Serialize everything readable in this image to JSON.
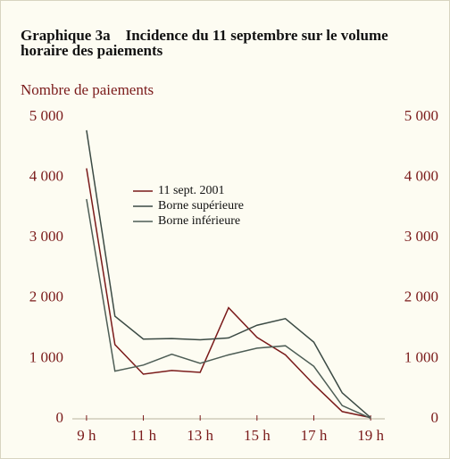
{
  "chart_data": {
    "type": "line",
    "title": "Graphique 3a    Incidence du 11 septembre sur le volume horaire des paiements",
    "ylabel": "Nombre de paiements",
    "x": [
      9,
      10,
      11,
      12,
      13,
      14,
      15,
      16,
      17,
      18,
      19
    ],
    "xlim": [
      8.5,
      19.5
    ],
    "xticks": [
      {
        "value": 9,
        "label": "9 h"
      },
      {
        "value": 11,
        "label": "11 h"
      },
      {
        "value": 13,
        "label": "13 h"
      },
      {
        "value": 15,
        "label": "15 h"
      },
      {
        "value": 17,
        "label": "17 h"
      },
      {
        "value": 19,
        "label": "19 h"
      }
    ],
    "ylim": [
      0,
      5000
    ],
    "yticks": [
      0,
      {
        "value": 1000,
        "label": "1 000"
      },
      {
        "value": 2000,
        "label": "2 000"
      },
      {
        "value": 3000,
        "label": "3 000"
      },
      {
        "value": 4000,
        "label": "4 000"
      },
      {
        "value": 5000,
        "label": "5 000"
      }
    ],
    "y2lim": [
      0,
      5000
    ],
    "y2ticks": [
      0,
      {
        "value": 1000,
        "label": "1 000"
      },
      {
        "value": 2000,
        "label": "2 000"
      },
      {
        "value": 3000,
        "label": "3 000"
      },
      {
        "value": 4000,
        "label": "4 000"
      },
      {
        "value": 5000,
        "label": "5 000"
      }
    ],
    "legend": "upper center",
    "series": [
      {
        "name": "11 sept. 2001",
        "color": "#7a1a1a",
        "values": [
          4150,
          1230,
          740,
          800,
          770,
          1840,
          1350,
          1060,
          570,
          120,
          20
        ]
      },
      {
        "name": "Borne supérieure",
        "color": "#3b4a44",
        "values": [
          4780,
          1700,
          1320,
          1330,
          1310,
          1340,
          1550,
          1660,
          1270,
          430,
          20
        ]
      },
      {
        "name": "Borne inférieure",
        "color": "#4d5d55",
        "values": [
          3640,
          790,
          890,
          1070,
          920,
          1060,
          1170,
          1210,
          870,
          220,
          10
        ]
      }
    ]
  }
}
